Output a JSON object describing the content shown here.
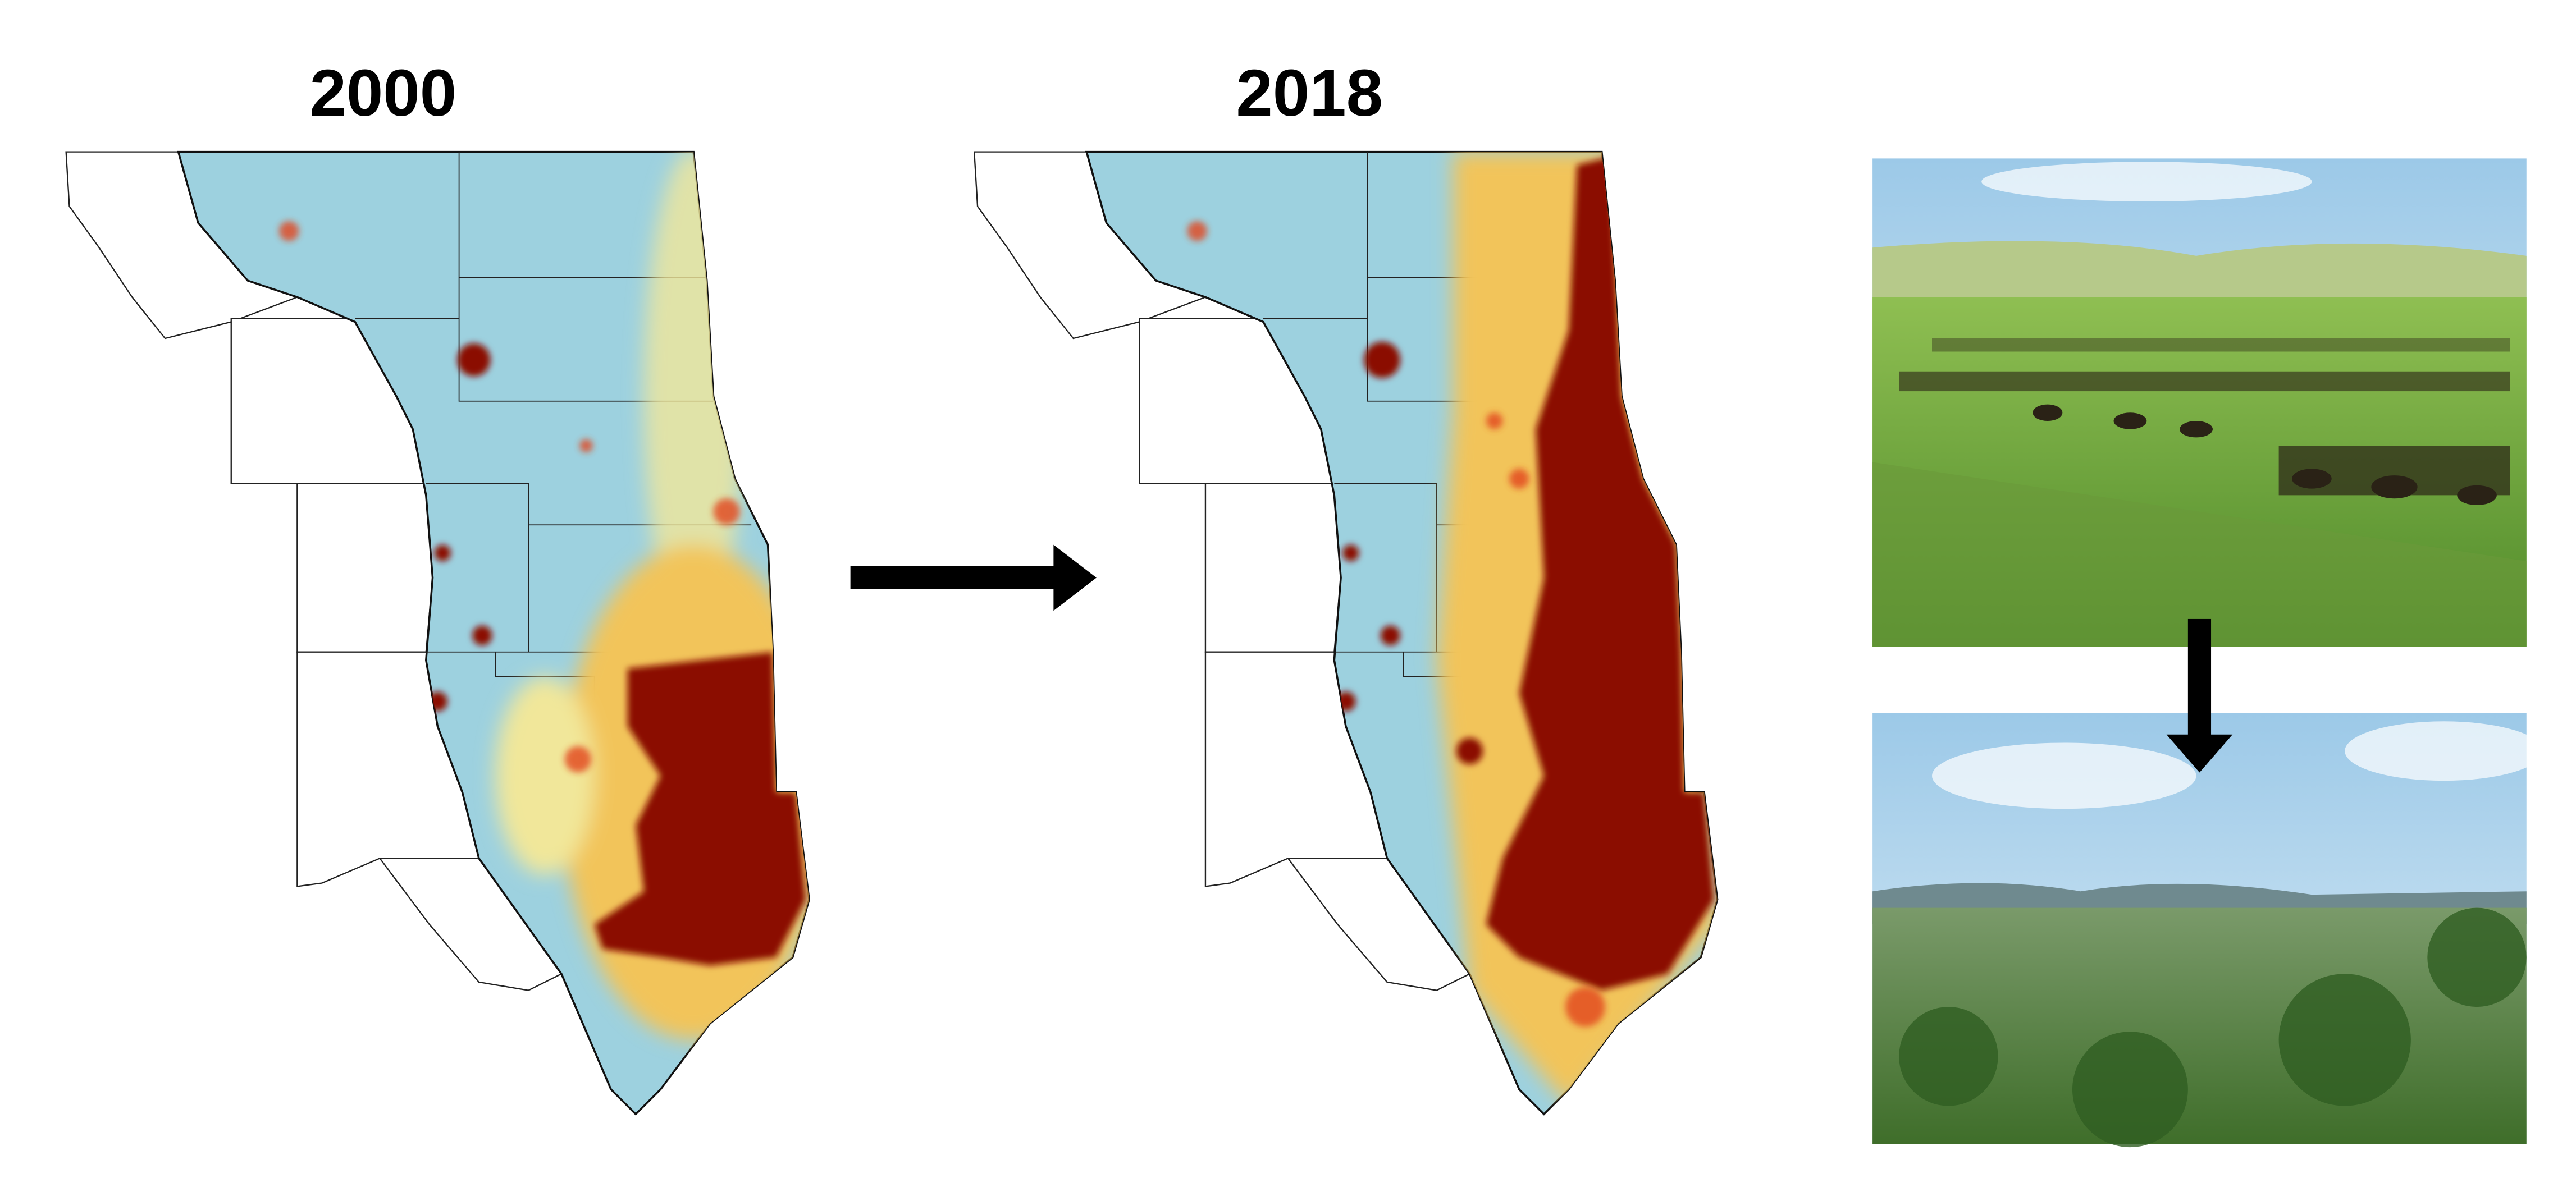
{
  "maps": [
    {
      "year": "2000"
    },
    {
      "year": "2018"
    }
  ]
}
